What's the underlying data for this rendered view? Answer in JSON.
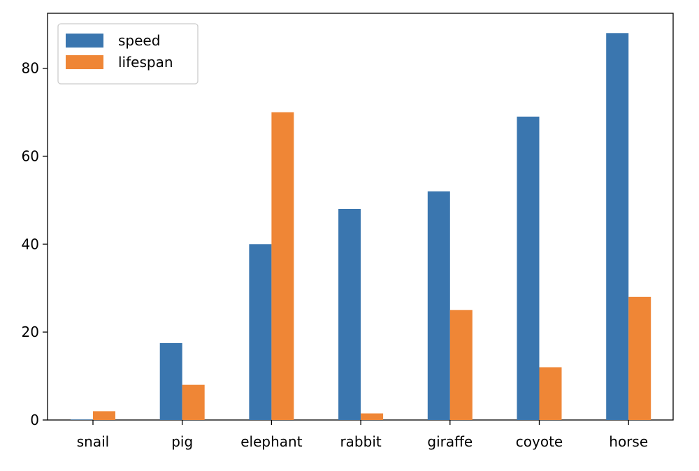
{
  "chart_data": {
    "type": "bar",
    "title": "",
    "xlabel": "",
    "ylabel": "",
    "categories": [
      "snail",
      "pig",
      "elephant",
      "rabbit",
      "giraffe",
      "coyote",
      "horse"
    ],
    "series": [
      {
        "name": "speed",
        "color": "#3a76af",
        "values": [
          0.1,
          17.5,
          40,
          48,
          52,
          69,
          88
        ]
      },
      {
        "name": "lifespan",
        "color": "#ef8636",
        "values": [
          2,
          8,
          70,
          1.5,
          25,
          12,
          28
        ]
      }
    ],
    "ylim": [
      0,
      92.5
    ],
    "yticks": [
      0,
      20,
      40,
      60,
      80
    ],
    "grid": false,
    "legend_position": "upper-left"
  }
}
